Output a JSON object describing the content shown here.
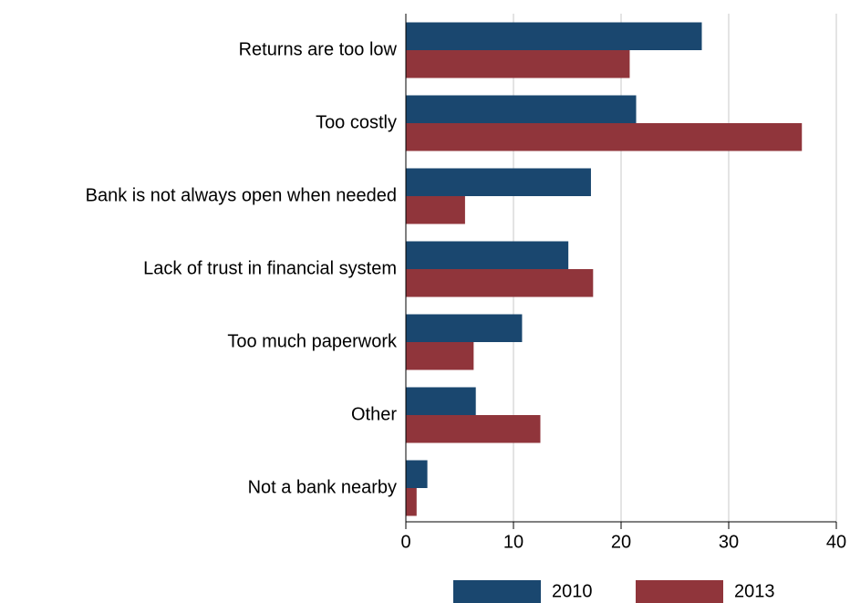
{
  "chart_data": {
    "type": "bar",
    "orientation": "horizontal",
    "categories": [
      "Returns are too low",
      "Too costly",
      "Bank is not always open when needed",
      "Lack of trust in financial system",
      "Too much paperwork",
      "Other",
      "Not a bank nearby"
    ],
    "series": [
      {
        "name": "2010",
        "color": "#1a476f",
        "values": [
          27.5,
          21.4,
          17.2,
          15.1,
          10.8,
          6.5,
          2.0
        ]
      },
      {
        "name": "2013",
        "color": "#90353b",
        "values": [
          20.8,
          36.8,
          5.5,
          17.4,
          6.3,
          12.5,
          1.0
        ]
      }
    ],
    "xlim": [
      0,
      40
    ],
    "xticks": [
      0,
      10,
      20,
      30,
      40
    ],
    "grid": true,
    "legend": "bottom"
  }
}
